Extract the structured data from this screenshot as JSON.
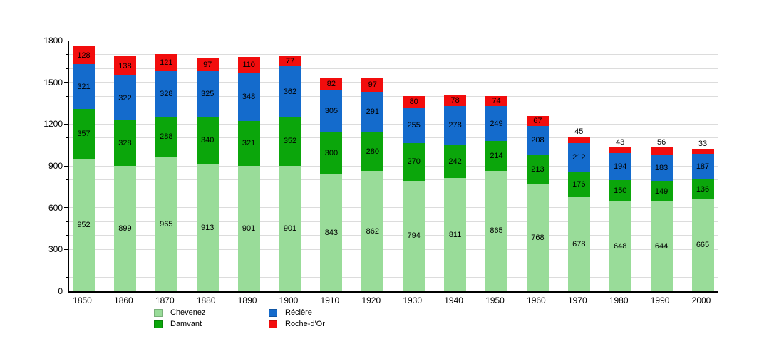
{
  "chart_data": {
    "type": "bar",
    "stacked": true,
    "title": "",
    "xlabel": "",
    "ylabel": "",
    "categories": [
      "1850",
      "1860",
      "1870",
      "1880",
      "1890",
      "1900",
      "1910",
      "1920",
      "1930",
      "1940",
      "1950",
      "1960",
      "1970",
      "1980",
      "1990",
      "2000"
    ],
    "series": [
      {
        "name": "Chevenez",
        "color": "#99DC99",
        "values": [
          952,
          899,
          965,
          913,
          901,
          901,
          843,
          862,
          794,
          811,
          865,
          768,
          678,
          648,
          644,
          665
        ]
      },
      {
        "name": "Damvant",
        "color": "#0BA60B",
        "values": [
          357,
          328,
          288,
          340,
          321,
          352,
          300,
          280,
          270,
          242,
          214,
          213,
          176,
          150,
          149,
          136
        ]
      },
      {
        "name": "Réclère",
        "color": "#146BCC",
        "values": [
          321,
          322,
          328,
          325,
          348,
          362,
          305,
          291,
          255,
          278,
          249,
          208,
          212,
          194,
          183,
          187
        ]
      },
      {
        "name": "Roche-d'Or",
        "color": "#F20D0D",
        "values": [
          128,
          138,
          121,
          97,
          110,
          77,
          82,
          97,
          80,
          78,
          74,
          67,
          45,
          43,
          56,
          33
        ]
      }
    ],
    "ylim": [
      0,
      1800
    ],
    "yticks": [
      0,
      300,
      600,
      900,
      1200,
      1500,
      1800
    ],
    "minor_grid_step": 100,
    "grid": true,
    "legend_position": "bottom-left",
    "axis_color": "#000000",
    "grid_color": "#DCDCDC",
    "value_labels_shown": true
  }
}
